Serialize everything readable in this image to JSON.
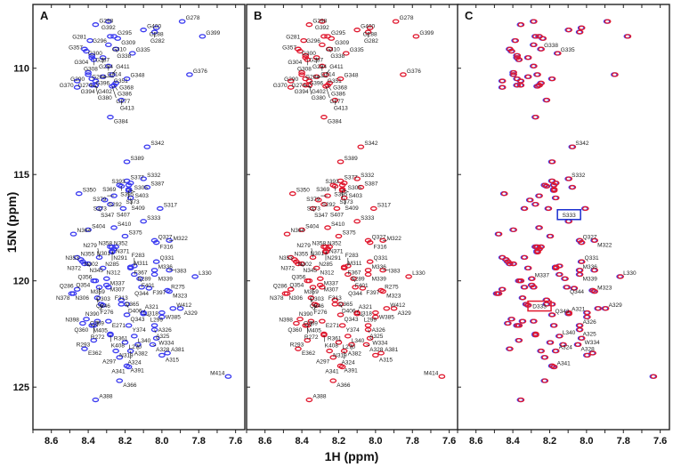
{
  "chart_data": {
    "type": "scatter",
    "title": "",
    "xlabel": "1H (ppm)",
    "ylabel": "15N (ppm)",
    "xlim": [
      8.7,
      7.55
    ],
    "ylim": [
      107,
      127
    ],
    "xticks": [
      "8.6",
      "8.4",
      "8.2",
      "8.0",
      "7.8",
      "7.6"
    ],
    "yticks": [
      "110",
      "115",
      "120",
      "125"
    ],
    "grid": false,
    "colors": {
      "blue": "#3a3af0",
      "red": "#e0182e",
      "blue_box": "#1a2fd0",
      "red_box": "#e0182e"
    },
    "peaks": [
      [
        "G298",
        8.36,
        107.95
      ],
      [
        "G392",
        8.29,
        107.8
      ],
      [
        "G400",
        8.1,
        108.2
      ],
      [
        "G288",
        8.03,
        108.1
      ],
      [
        "G282",
        8.04,
        108.3
      ],
      [
        "G278",
        7.89,
        107.8
      ],
      [
        "G399",
        7.78,
        108.5
      ],
      [
        "G295",
        8.26,
        108.5
      ],
      [
        "G309",
        8.24,
        108.6
      ],
      [
        "G296",
        8.28,
        108.5
      ],
      [
        "G281",
        8.39,
        108.7
      ],
      [
        "G310",
        8.29,
        108.9
      ],
      [
        "G338",
        8.25,
        109.1
      ],
      [
        "G335",
        8.16,
        109.3
      ],
      [
        "G300",
        8.42,
        109.1
      ],
      [
        "G287",
        8.38,
        109.4
      ],
      [
        "G357",
        8.41,
        109.2
      ],
      [
        "G304",
        8.38,
        109.5
      ],
      [
        "G294",
        8.32,
        109.5
      ],
      [
        "G314",
        8.29,
        109.9
      ],
      [
        "G308",
        8.37,
        109.6
      ],
      [
        "G284",
        8.4,
        110.2
      ],
      [
        "G290",
        8.4,
        110.3
      ],
      [
        "G396",
        8.38,
        110.5
      ],
      [
        "G351",
        8.32,
        110.4
      ],
      [
        "G411",
        8.27,
        110.3
      ],
      [
        "G274",
        8.36,
        110.6
      ],
      [
        "G370",
        8.46,
        110.6
      ],
      [
        "G394",
        8.46,
        110.9
      ],
      [
        "G402",
        8.38,
        110.8
      ],
      [
        "G380",
        8.36,
        110.8
      ],
      [
        "G348",
        8.19,
        110.5
      ],
      [
        "G368",
        8.25,
        110.7
      ],
      [
        "G386",
        8.26,
        110.8
      ],
      [
        "G277",
        8.27,
        110.85
      ],
      [
        "G413",
        8.22,
        111.5
      ],
      [
        "G376",
        7.85,
        110.3
      ],
      [
        "G384",
        8.28,
        112.3
      ],
      [
        "S342",
        8.08,
        113.7
      ],
      [
        "S389",
        8.19,
        114.4
      ],
      [
        "S377",
        8.19,
        115.3
      ],
      [
        "S305",
        8.17,
        115.4
      ],
      [
        "S393",
        8.18,
        115.5
      ],
      [
        "S369",
        8.23,
        115.5
      ],
      [
        "S395",
        8.22,
        115.55
      ],
      [
        "S332",
        8.1,
        115.2
      ],
      [
        "S387",
        8.08,
        115.6
      ],
      [
        "S403",
        8.18,
        115.7
      ],
      [
        "S373",
        8.18,
        115.75
      ],
      [
        "S409",
        8.17,
        116.1
      ],
      [
        "S350",
        8.45,
        115.9
      ],
      [
        "S292",
        8.31,
        116.2
      ],
      [
        "S379",
        8.26,
        116.0
      ],
      [
        "S273",
        8.28,
        116.4
      ],
      [
        "S347",
        8.34,
        116.6
      ],
      [
        "S407",
        8.21,
        116.6
      ],
      [
        "S317",
        8.01,
        116.6
      ],
      [
        "S333",
        8.1,
        117.2
      ],
      [
        "S410",
        8.26,
        117.5
      ],
      [
        "S375",
        8.2,
        117.9
      ],
      [
        "S404",
        8.4,
        117.6
      ],
      [
        "N364",
        8.48,
        117.8
      ],
      [
        "Q327",
        8.04,
        118.1
      ],
      [
        "F316",
        8.03,
        118.2
      ],
      [
        "M322",
        7.96,
        118.1
      ],
      [
        "N352",
        8.28,
        118.4
      ],
      [
        "N371",
        8.27,
        118.4
      ],
      [
        "N358",
        8.25,
        118.4
      ],
      [
        "N301",
        8.26,
        118.5
      ],
      [
        "N291",
        8.27,
        118.6
      ],
      [
        "N285",
        8.27,
        118.65
      ],
      [
        "N355",
        8.46,
        118.9
      ],
      [
        "N302",
        8.44,
        119.0
      ],
      [
        "N353",
        8.43,
        119.1
      ],
      [
        "N372",
        8.42,
        119.2
      ],
      [
        "N345",
        8.4,
        119.2
      ],
      [
        "N279",
        8.34,
        118.9
      ],
      [
        "N312",
        8.32,
        119.4
      ],
      [
        "M311",
        8.17,
        119.35
      ],
      [
        "F367",
        8.17,
        119.4
      ],
      [
        "F283",
        8.15,
        119.3
      ],
      [
        "M337",
        8.3,
        119.9
      ],
      [
        "Q356",
        8.36,
        120.0
      ],
      [
        "Q354",
        8.37,
        120.0
      ],
      [
        "M307",
        8.3,
        120.2
      ],
      [
        "M359",
        8.29,
        120.3
      ],
      [
        "F289",
        8.15,
        119.7
      ],
      [
        "F401",
        8.12,
        119.9
      ],
      [
        "Q286",
        8.46,
        120.4
      ],
      [
        "Q303",
        8.34,
        120.3
      ],
      [
        "N306",
        8.49,
        120.6
      ],
      [
        "Q344",
        8.11,
        120.3
      ],
      [
        "F397",
        8.07,
        120.35
      ],
      [
        "Q331",
        8.03,
        119.1
      ],
      [
        "M336",
        8.04,
        119.5
      ],
      [
        "M339",
        8.04,
        119.7
      ],
      [
        "I383",
        7.96,
        119.5
      ],
      [
        "L330",
        7.82,
        119.8
      ],
      [
        "R275",
        7.97,
        120.45
      ],
      [
        "M323",
        7.96,
        120.5
      ],
      [
        "N378",
        8.48,
        120.6
      ],
      [
        "Q365",
        8.22,
        120.9
      ],
      [
        "Q346",
        8.35,
        120.8
      ],
      [
        "F276",
        8.33,
        121.1
      ],
      [
        "N390",
        8.32,
        121.15
      ],
      [
        "D406",
        8.19,
        121.1
      ],
      [
        "F313",
        8.22,
        121.1
      ],
      [
        "W412",
        7.94,
        121.3
      ],
      [
        "W385",
        8.0,
        121.5
      ],
      [
        "A329",
        7.9,
        121.3
      ],
      [
        "I318",
        8.0,
        121.7
      ],
      [
        "Q269",
        8.41,
        121.8
      ],
      [
        "N398",
        8.43,
        122.0
      ],
      [
        "Q343",
        8.19,
        121.6
      ],
      [
        "A321",
        8.1,
        121.5
      ],
      [
        "L299",
        8.1,
        121.55
      ],
      [
        "M405",
        8.35,
        121.9
      ],
      [
        "Q360",
        8.38,
        122.1
      ],
      [
        "E271",
        8.29,
        121.9
      ],
      [
        "R272",
        8.37,
        122.1
      ],
      [
        "Y374",
        8.18,
        122.1
      ],
      [
        "A326",
        8.04,
        122.1
      ],
      [
        "A325",
        8.04,
        122.3
      ],
      [
        "R361",
        8.28,
        122.5
      ],
      [
        "K408",
        8.28,
        122.55
      ],
      [
        "L340",
        8.15,
        122.6
      ],
      [
        "W334",
        8.03,
        122.7
      ],
      [
        "R293",
        8.37,
        122.8
      ],
      [
        "L270",
        8.2,
        122.9
      ],
      [
        "A382",
        8.13,
        123.0
      ],
      [
        "A328",
        8.05,
        123.0
      ],
      [
        "E362",
        8.42,
        123.2
      ],
      [
        "N319",
        8.25,
        123.3
      ],
      [
        "A324",
        8.17,
        123.3
      ],
      [
        "A381",
        7.97,
        123.4
      ],
      [
        "A297",
        8.23,
        123.6
      ],
      [
        "A315",
        8.0,
        123.5
      ],
      [
        "A391",
        8.19,
        124.0
      ],
      [
        "A341",
        8.18,
        124.05
      ],
      [
        "M414",
        7.64,
        124.5
      ],
      [
        "A366",
        8.23,
        124.7
      ],
      [
        "A388",
        8.36,
        125.6
      ]
    ],
    "panels": [
      {
        "id": "A",
        "label": "A",
        "spectra": [
          "blue"
        ],
        "labels": "all"
      },
      {
        "id": "B",
        "label": "B",
        "spectra": [
          "red"
        ],
        "labels": "all"
      },
      {
        "id": "C",
        "label": "C",
        "spectra": [
          "blue",
          "red"
        ],
        "labels": [
          "G338",
          "G335",
          "S342",
          "S332",
          "Q327",
          "M322",
          "M336",
          "M339",
          "Q331",
          "L330",
          "M337",
          "Q344",
          "M323",
          "A321",
          "A329",
          "Q343",
          "A326",
          "A325",
          "L340",
          "W334",
          "A328",
          "A324",
          "A341"
        ],
        "boxed": [
          {
            "text": "S333",
            "color": "blue_box",
            "H": 8.1,
            "N": 117.2
          },
          {
            "text": "D333",
            "color": "red_box",
            "H": 8.26,
            "N": 121.5
          }
        ]
      }
    ]
  }
}
